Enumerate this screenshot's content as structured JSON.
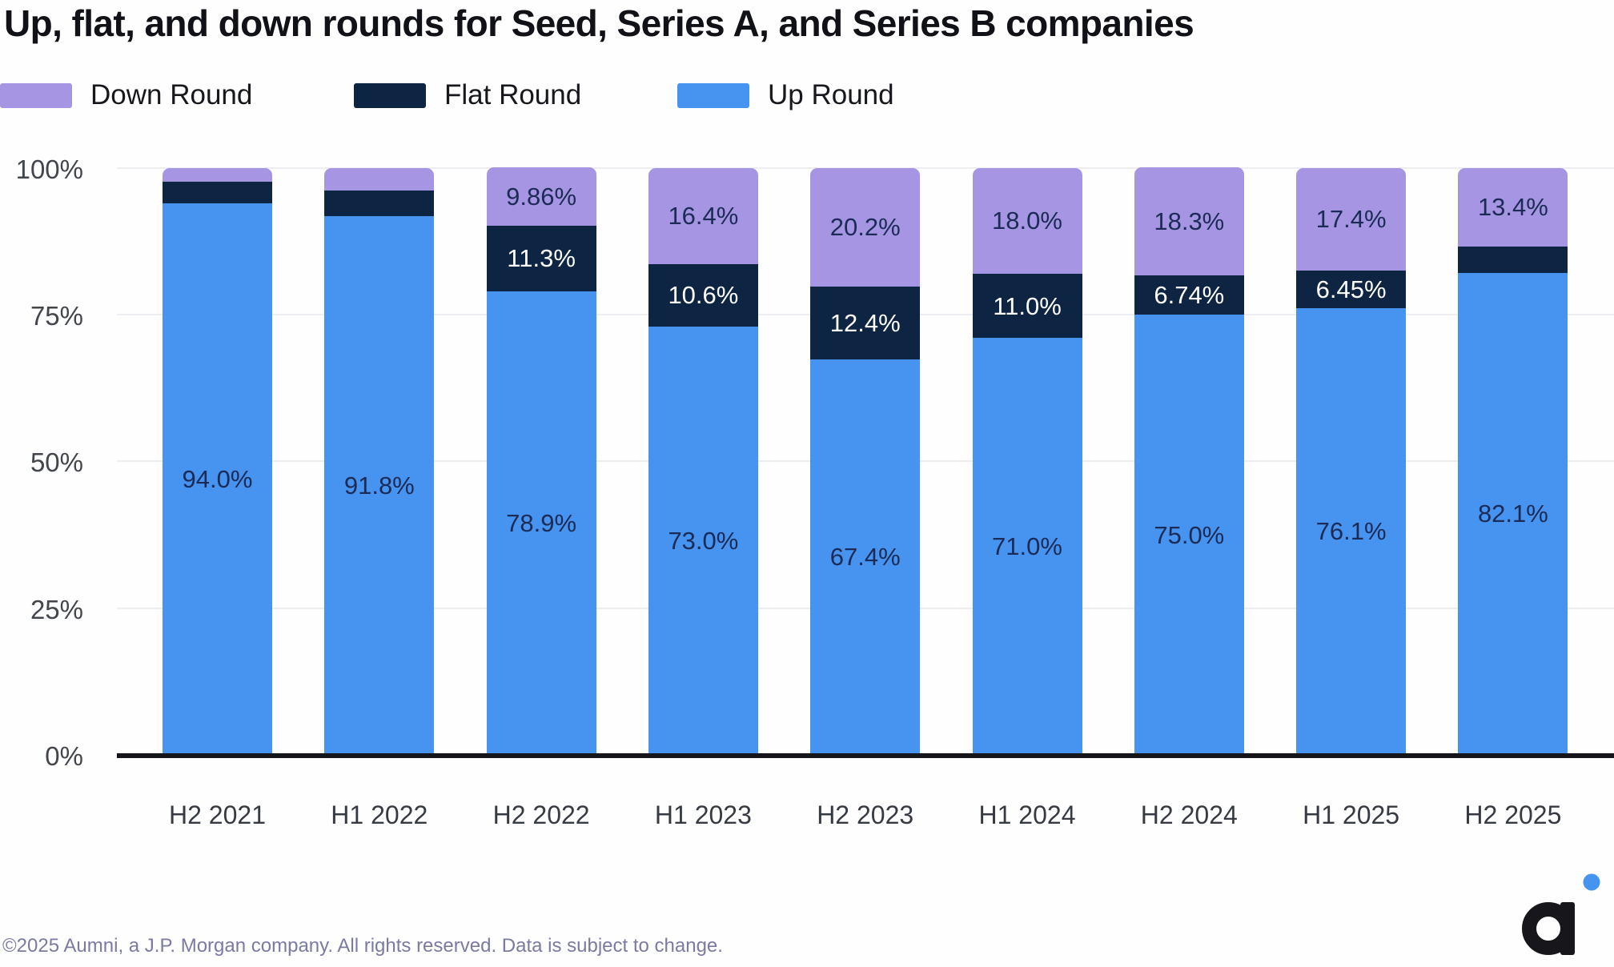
{
  "title": "Up, flat, and down rounds for Seed, Series A, and Series B companies",
  "legend": {
    "items": [
      {
        "label": "Down Round",
        "color": "#a695e3"
      },
      {
        "label": "Flat Round",
        "color": "#0e2443"
      },
      {
        "label": "Up Round",
        "color": "#4793f0"
      }
    ]
  },
  "footer": {
    "copyright": "©2025 Aumni, a J.P. Morgan company. All rights reserved. Data is subject to change."
  },
  "logo": {
    "name": "aumni-logo",
    "mark_color": "#17171b",
    "dot_color": "#4793f0"
  },
  "colors": {
    "up": "#4793f0",
    "flat": "#0e2443",
    "down": "#a695e3",
    "label_dark": "#1b2b55",
    "label_light": "#ffffff",
    "grid": "#ededf2",
    "axis": "#15161a",
    "ytick_text": "#42464d",
    "xtick_text": "#363b43"
  },
  "chart_data": {
    "type": "bar",
    "stacked": true,
    "title": "Up, flat, and down rounds for Seed, Series A, and Series B companies",
    "xlabel": "",
    "ylabel": "",
    "ylim": [
      0,
      100
    ],
    "grid": true,
    "legend_position": "top",
    "y_ticks": [
      {
        "value": 0,
        "label": "0%"
      },
      {
        "value": 25,
        "label": "25%"
      },
      {
        "value": 50,
        "label": "50%"
      },
      {
        "value": 75,
        "label": "75%"
      },
      {
        "value": 100,
        "label": "100%"
      }
    ],
    "categories": [
      "H2 2021",
      "H1 2022",
      "H2 2022",
      "H1 2023",
      "H2 2023",
      "H1 2024",
      "H2 2024",
      "H1 2025",
      "H2 2025"
    ],
    "series": [
      {
        "name": "Up Round",
        "color": "#4793f0",
        "label_color": "#1b2b55",
        "values": [
          94.0,
          91.8,
          78.9,
          73.0,
          67.4,
          71.0,
          75.0,
          76.1,
          82.1
        ],
        "labels": [
          "94.0%",
          "91.8%",
          "78.9%",
          "73.0%",
          "67.4%",
          "71.0%",
          "75.0%",
          "76.1%",
          "82.1%"
        ]
      },
      {
        "name": "Flat Round",
        "color": "#0e2443",
        "label_color": "#ffffff",
        "values": [
          3.7,
          4.4,
          11.3,
          10.6,
          12.4,
          11.0,
          6.74,
          6.45,
          4.5
        ],
        "labels": [
          null,
          null,
          "11.3%",
          "10.6%",
          "12.4%",
          "11.0%",
          "6.74%",
          "6.45%",
          null
        ]
      },
      {
        "name": "Down Round",
        "color": "#a695e3",
        "label_color": "#1b2b55",
        "values": [
          2.3,
          3.8,
          9.86,
          16.4,
          20.2,
          18.0,
          18.3,
          17.4,
          13.4
        ],
        "labels": [
          null,
          null,
          "9.86%",
          "16.4%",
          "20.2%",
          "18.0%",
          "18.3%",
          "17.4%",
          "13.4%"
        ]
      }
    ]
  }
}
